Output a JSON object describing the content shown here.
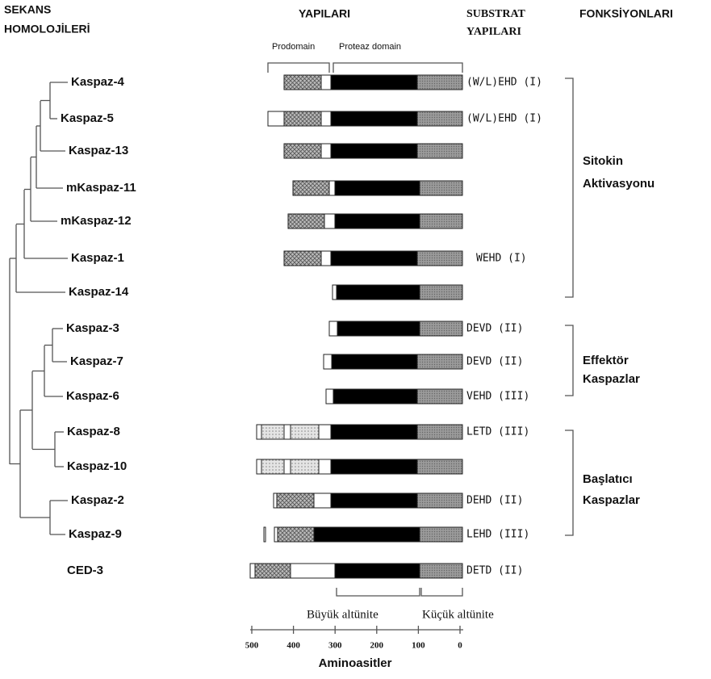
{
  "header": {
    "sequence": [
      "SEKANS",
      "HOMOLOJİLERİ"
    ],
    "structures": "YAPILARI",
    "substrate": [
      "SUBSTRAT",
      "YAPILARI"
    ],
    "functions": "FONKSİYONLARI"
  },
  "domains": {
    "prodomain": "Prodomain",
    "protease": "Proteaz domain"
  },
  "rows": [
    {
      "name": "Kaspaz-4",
      "substrate": "(W/L)EHD (I)"
    },
    {
      "name": "Kaspaz-5",
      "substrate": "(W/L)EHD (I)"
    },
    {
      "name": "Kaspaz-13"
    },
    {
      "name": "mKaspaz-11"
    },
    {
      "name": "mKaspaz-12"
    },
    {
      "name": "Kaspaz-1",
      "substrate": "WEHD  (I)"
    },
    {
      "name": "Kaspaz-14"
    },
    {
      "name": "Kaspaz-3",
      "substrate": "DEVD (II)"
    },
    {
      "name": "Kaspaz-7",
      "substrate": "DEVD (II)"
    },
    {
      "name": "Kaspaz-6",
      "substrate": "VEHD (III)"
    },
    {
      "name": "Kaspaz-8",
      "substrate": "LETD (III)"
    },
    {
      "name": "Kaspaz-10"
    },
    {
      "name": "Kaspaz-2",
      "substrate": "DEHD (II)"
    },
    {
      "name": "Kaspaz-9",
      "substrate": "LEHD (III)"
    },
    {
      "name": "CED-3",
      "substrate": "DETD (II)"
    }
  ],
  "groups": [
    {
      "lines": [
        "Sitokin",
        "Aktivasyonu"
      ]
    },
    {
      "lines": [
        "Effektör",
        "Kaspazlar"
      ]
    },
    {
      "lines": [
        "Başlatıcı",
        "Kaspazlar"
      ]
    }
  ],
  "subunits": {
    "large": "Büyük altünite",
    "small": "Küçük altünite"
  },
  "axis": {
    "ticks": [
      "500",
      "400",
      "300",
      "200",
      "100",
      "0"
    ],
    "label": "Aminoasitler"
  }
}
